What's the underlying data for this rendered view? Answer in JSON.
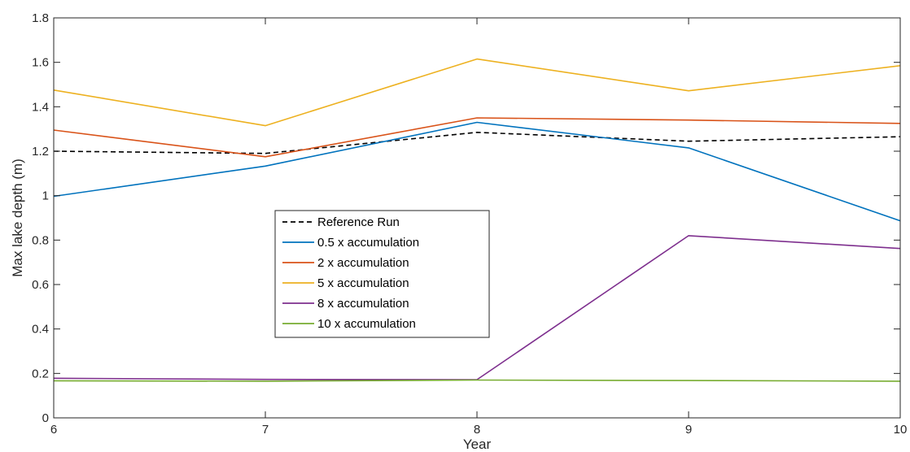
{
  "chart_data": {
    "type": "line",
    "title": "",
    "xlabel": "Year",
    "ylabel": "Max lake depth (m)",
    "xlim": [
      6,
      10
    ],
    "ylim": [
      0,
      1.8
    ],
    "xticks": [
      6,
      7,
      8,
      9,
      10
    ],
    "xtick_labels": [
      "6",
      "7",
      "8",
      "9",
      "10"
    ],
    "yticks": [
      0,
      0.2,
      0.4,
      0.6,
      0.8,
      1,
      1.2,
      1.4,
      1.6,
      1.8
    ],
    "ytick_labels": [
      "0",
      "0.2",
      "0.4",
      "0.6",
      "0.8",
      "1",
      "1.2",
      "1.4",
      "1.6",
      "1.8"
    ],
    "grid": false,
    "legend_position": "center-left",
    "x": [
      6,
      7,
      8,
      9,
      10
    ],
    "series": [
      {
        "name": "Reference Run",
        "color": "#000000",
        "style": "dashed",
        "values": [
          1.2,
          1.19,
          1.285,
          1.245,
          1.265
        ]
      },
      {
        "name": "0.5 x accumulation",
        "color": "#0072BD",
        "style": "solid",
        "values": [
          0.997,
          1.133,
          1.33,
          1.215,
          0.887
        ]
      },
      {
        "name": "2 x accumulation",
        "color": "#D95319",
        "style": "solid",
        "values": [
          1.295,
          1.175,
          1.35,
          1.34,
          1.325
        ]
      },
      {
        "name": "5 x accumulation",
        "color": "#EDB120",
        "style": "solid",
        "values": [
          1.475,
          1.315,
          1.615,
          1.472,
          1.585
        ]
      },
      {
        "name": "8 x accumulation",
        "color": "#7E2F8E",
        "style": "solid",
        "values": [
          0.178,
          0.173,
          0.172,
          0.82,
          0.762
        ]
      },
      {
        "name": "10 x accumulation",
        "color": "#77AC30",
        "style": "solid",
        "values": [
          0.167,
          0.165,
          0.17,
          0.168,
          0.165
        ]
      }
    ]
  }
}
